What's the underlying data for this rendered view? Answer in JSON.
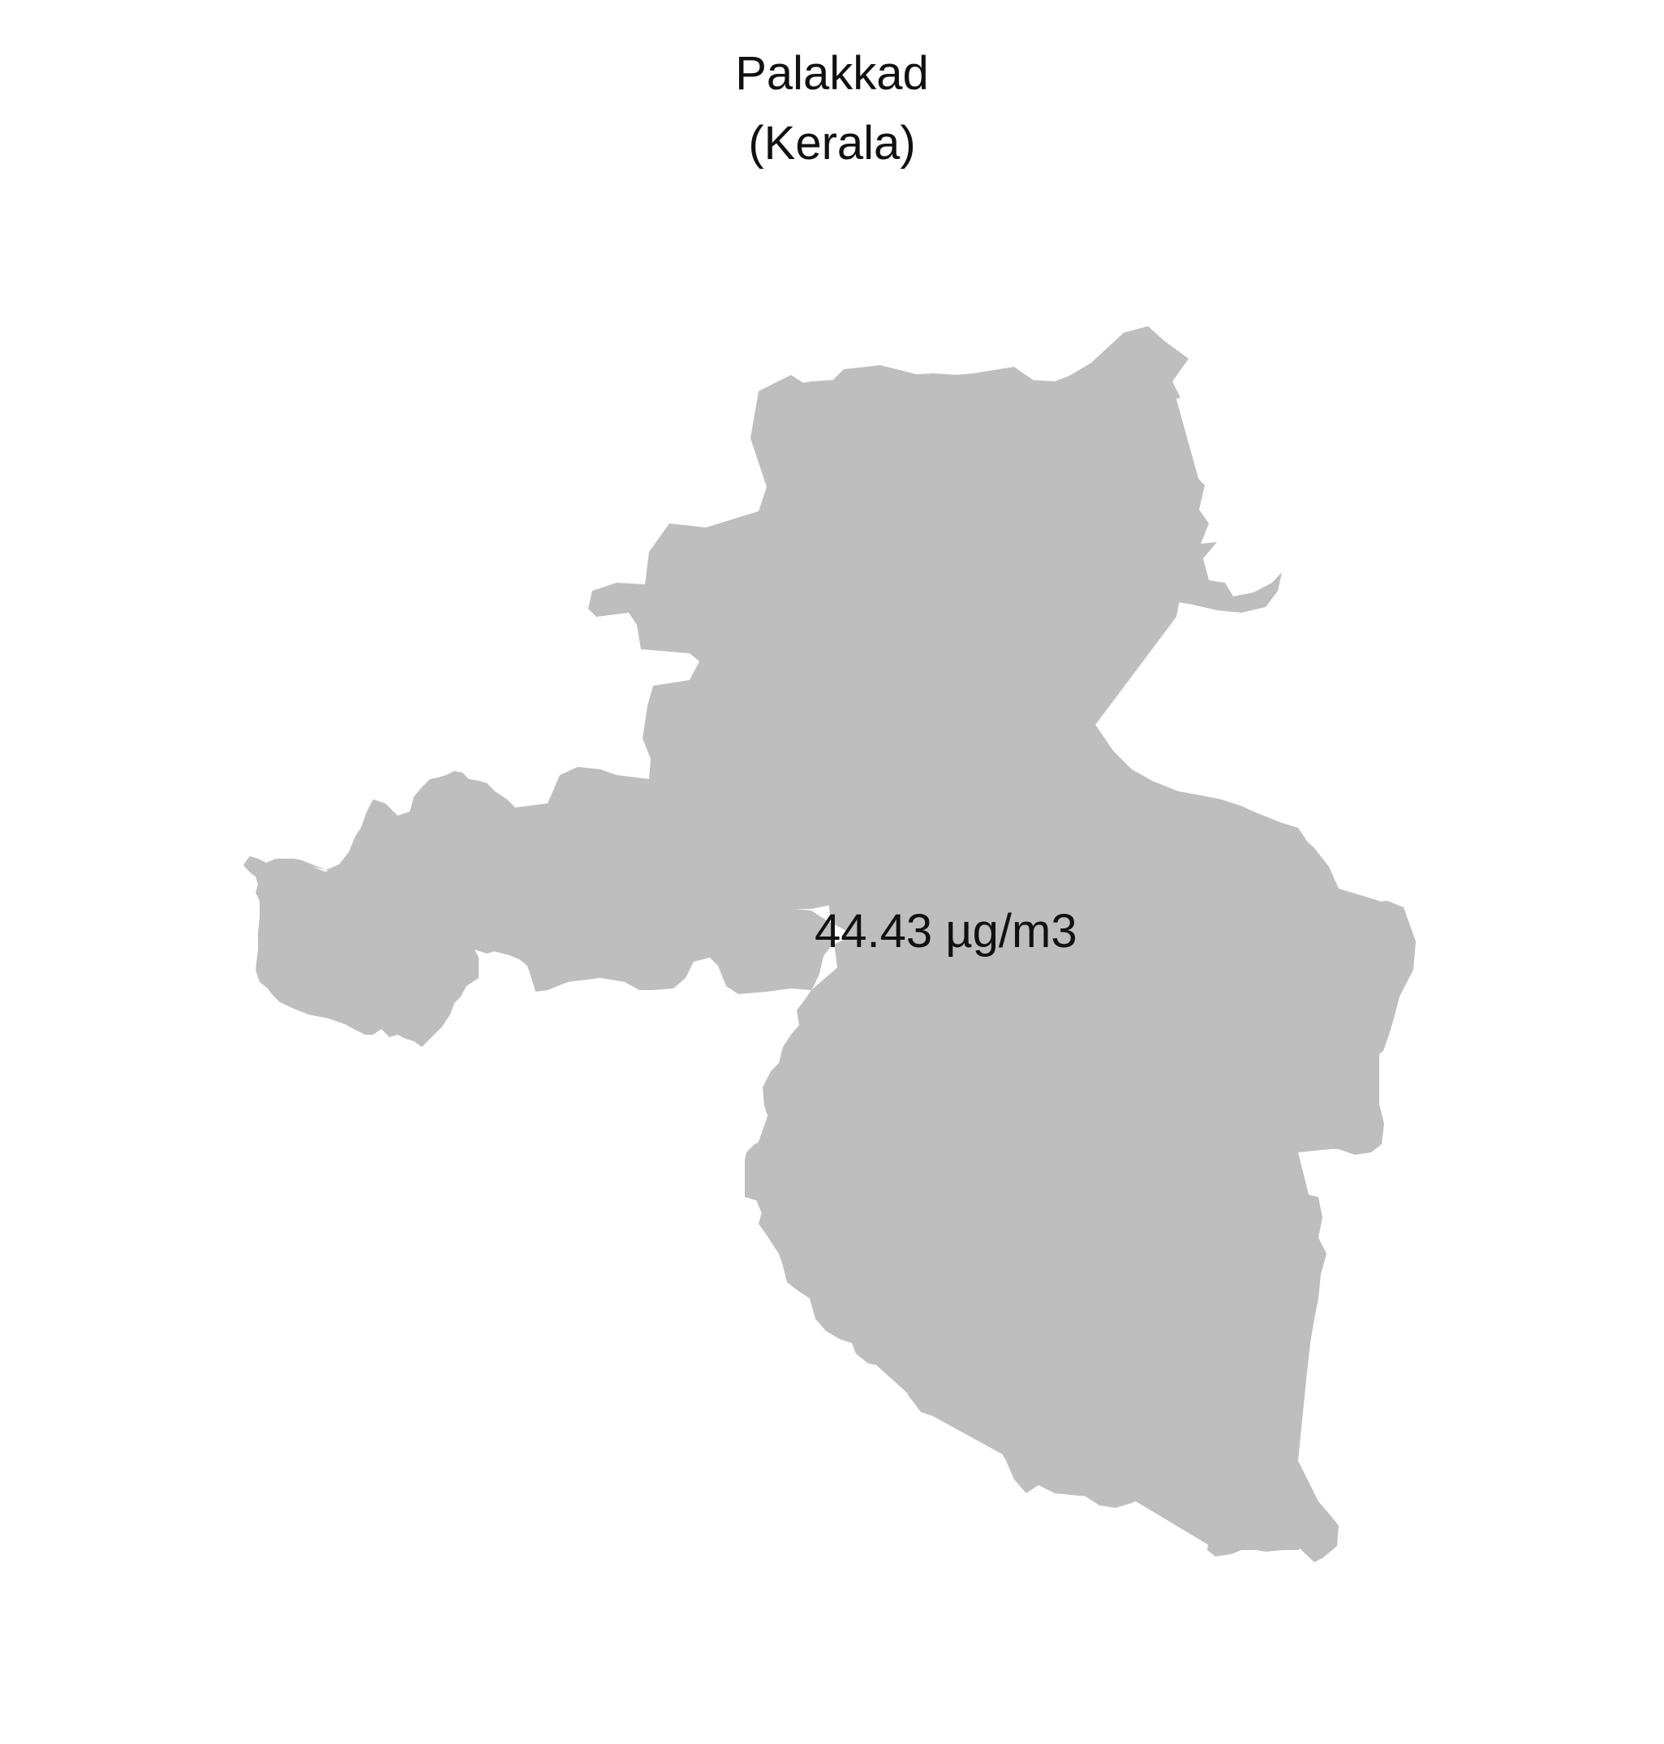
{
  "map": {
    "title": "Palakkad",
    "subtitle": "(Kerala)",
    "value_label": "44.43 µg/m3",
    "fill_color": "#bebebe",
    "background_color": "#ffffff"
  }
}
